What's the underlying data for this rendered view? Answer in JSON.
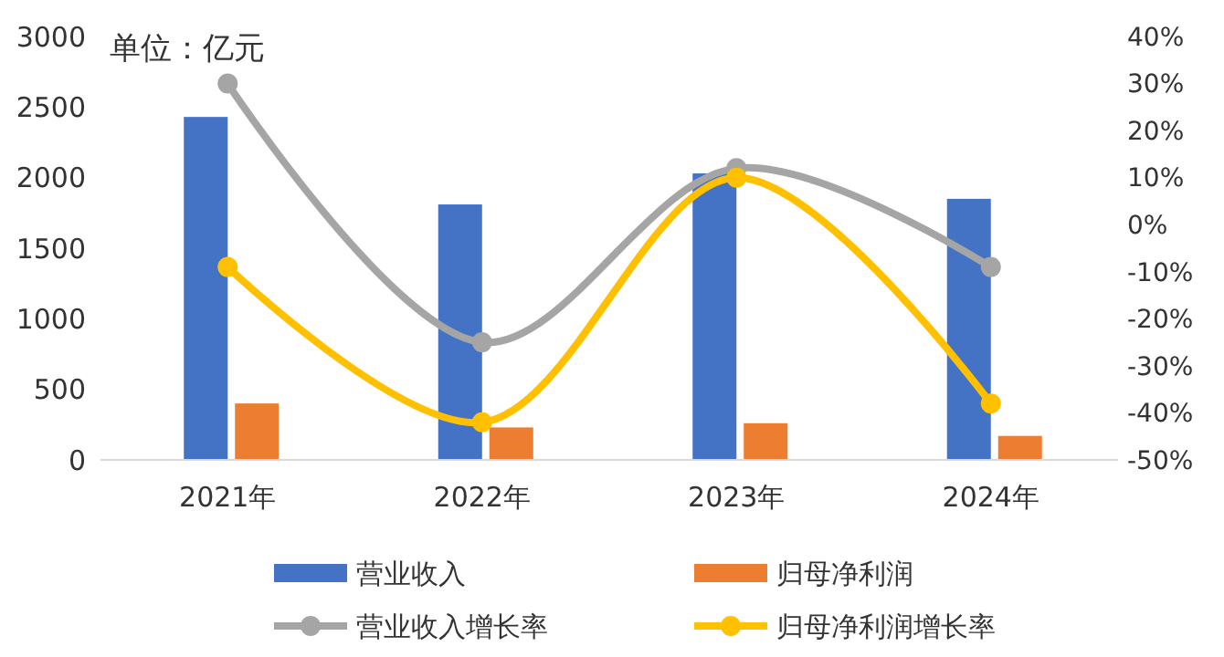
{
  "chart_data": {
    "type": "bar",
    "ylabel": "单位：亿元",
    "categories": [
      "2021年",
      "2022年",
      "2023年",
      "2024年"
    ],
    "series": [
      {
        "name": "营业收入",
        "color": "#4472c4",
        "values": [
          2430,
          1810,
          2030,
          1850
        ]
      },
      {
        "name": "归母净利润",
        "color": "#ed7d31",
        "values": [
          400,
          230,
          260,
          170
        ]
      },
      {
        "name": "营业收入增长率",
        "type": "line",
        "axis": "y2",
        "color": "#a5a5a5",
        "marker": "circle",
        "values": [
          30,
          -25,
          12,
          -9
        ]
      },
      {
        "name": "归母净利润增长率",
        "type": "line",
        "axis": "y2",
        "color": "#ffc000",
        "marker": "circle",
        "values": [
          -9,
          -42,
          10,
          -38
        ]
      }
    ],
    "ylim": [
      0,
      3000
    ],
    "yticks": [
      0,
      500,
      1000,
      1500,
      2000,
      2500,
      3000
    ],
    "y2lim": [
      -50,
      40
    ],
    "y2ticks": [
      {
        "value": -50,
        "label": "-50%"
      },
      {
        "value": -40,
        "label": "-40%"
      },
      {
        "value": -30,
        "label": "-30%"
      },
      {
        "value": -20,
        "label": "-20%"
      },
      {
        "value": -10,
        "label": "-10%"
      },
      {
        "value": 0,
        "label": "0%"
      },
      {
        "value": 10,
        "label": "10%"
      },
      {
        "value": 20,
        "label": "20%"
      },
      {
        "value": 30,
        "label": "30%"
      },
      {
        "value": 40,
        "label": "40%"
      }
    ],
    "legend": "bottom",
    "grid": false
  }
}
